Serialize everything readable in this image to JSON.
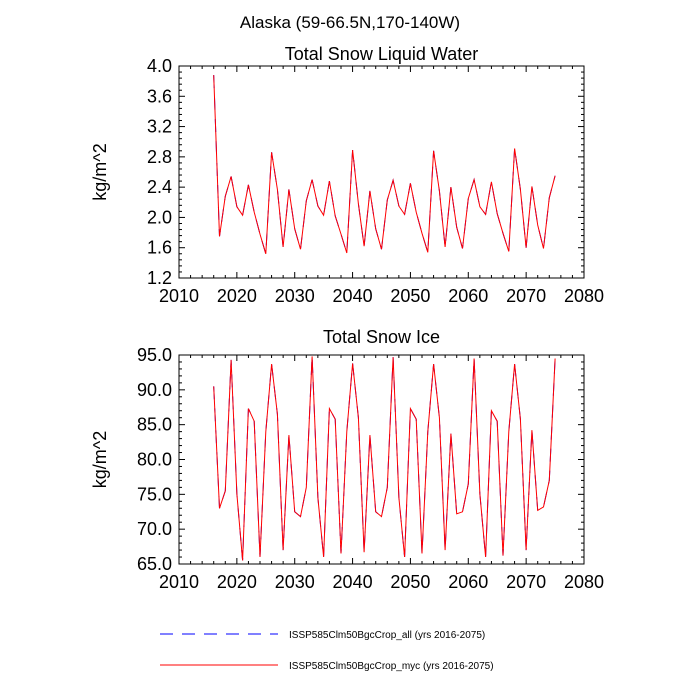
{
  "figure": {
    "title": "Alaska (59-66.5N,170-140W)"
  },
  "legend": {
    "placement": "bottom",
    "entries": [
      {
        "label": "ISSP585Clm50BgcCrop_all (yrs 2016-2075)",
        "color": "#0000ff",
        "style": "dashed"
      },
      {
        "label": "ISSP585Clm50BgcCrop_myc (yrs 2016-2075)",
        "color": "#ff0000",
        "style": "solid"
      }
    ]
  },
  "chart_data": [
    {
      "type": "line",
      "title": "Total Snow Liquid Water",
      "xlabel": "",
      "ylabel": "kg/m^2",
      "xlim": [
        2010,
        2080
      ],
      "ylim": [
        1.2,
        4.0
      ],
      "xticks": [
        2010,
        2020,
        2030,
        2040,
        2050,
        2060,
        2070,
        2080
      ],
      "xtick_labels": [
        "2010",
        "2020",
        "2030",
        "2040",
        "2050",
        "2060",
        "2070",
        "2080"
      ],
      "yticks": [
        1.2,
        1.6,
        2.0,
        2.4,
        2.8,
        3.2,
        3.6,
        4.0
      ],
      "ytick_labels": [
        "1.2",
        "1.6",
        "2.0",
        "2.4",
        "2.8",
        "3.2",
        "3.6",
        "4.0"
      ],
      "grid": false,
      "x": [
        2016,
        2017,
        2018,
        2019,
        2020,
        2021,
        2022,
        2023,
        2024,
        2025,
        2026,
        2027,
        2028,
        2029,
        2030,
        2031,
        2032,
        2033,
        2034,
        2035,
        2036,
        2037,
        2038,
        2039,
        2040,
        2041,
        2042,
        2043,
        2044,
        2045,
        2046,
        2047,
        2048,
        2049,
        2050,
        2051,
        2052,
        2053,
        2054,
        2055,
        2056,
        2057,
        2058,
        2059,
        2060,
        2061,
        2062,
        2063,
        2064,
        2065,
        2066,
        2067,
        2068,
        2069,
        2070,
        2071,
        2072,
        2073,
        2074,
        2075
      ],
      "series": [
        {
          "color": "#0000ff",
          "style": "dashed",
          "values": [
            3.88,
            1.75,
            2.28,
            2.54,
            2.14,
            2.03,
            2.43,
            2.07,
            1.78,
            1.52,
            2.86,
            2.37,
            1.61,
            2.37,
            1.85,
            1.58,
            2.22,
            2.5,
            2.15,
            2.03,
            2.48,
            2.02,
            1.78,
            1.53,
            2.89,
            2.18,
            1.62,
            2.35,
            1.85,
            1.58,
            2.23,
            2.49,
            2.15,
            2.04,
            2.45,
            2.07,
            1.79,
            1.54,
            2.88,
            2.35,
            1.61,
            2.4,
            1.87,
            1.59,
            2.25,
            2.5,
            2.14,
            2.04,
            2.47,
            2.05,
            1.79,
            1.55,
            2.91,
            2.37,
            1.6,
            2.41,
            1.9,
            1.59,
            2.26,
            2.55
          ]
        },
        {
          "color": "#ff0000",
          "style": "solid",
          "values": [
            3.88,
            1.75,
            2.28,
            2.54,
            2.14,
            2.03,
            2.43,
            2.07,
            1.78,
            1.52,
            2.86,
            2.37,
            1.61,
            2.37,
            1.85,
            1.58,
            2.22,
            2.5,
            2.15,
            2.03,
            2.48,
            2.02,
            1.78,
            1.53,
            2.89,
            2.18,
            1.62,
            2.35,
            1.85,
            1.58,
            2.23,
            2.49,
            2.15,
            2.04,
            2.45,
            2.07,
            1.79,
            1.54,
            2.88,
            2.35,
            1.61,
            2.4,
            1.87,
            1.59,
            2.25,
            2.5,
            2.14,
            2.04,
            2.47,
            2.05,
            1.79,
            1.55,
            2.91,
            2.37,
            1.6,
            2.41,
            1.9,
            1.59,
            2.26,
            2.55
          ]
        }
      ]
    },
    {
      "type": "line",
      "title": "Total Snow Ice",
      "xlabel": "",
      "ylabel": "kg/m^2",
      "xlim": [
        2010,
        2080
      ],
      "ylim": [
        65.0,
        95.0
      ],
      "xticks": [
        2010,
        2020,
        2030,
        2040,
        2050,
        2060,
        2070,
        2080
      ],
      "xtick_labels": [
        "2010",
        "2020",
        "2030",
        "2040",
        "2050",
        "2060",
        "2070",
        "2080"
      ],
      "yticks": [
        65,
        70,
        75,
        80,
        85,
        90,
        95
      ],
      "ytick_labels": [
        "65.0",
        "70.0",
        "75.0",
        "80.0",
        "85.0",
        "90.0",
        "95.0"
      ],
      "grid": false,
      "x": [
        2016,
        2017,
        2018,
        2019,
        2020,
        2021,
        2022,
        2023,
        2024,
        2025,
        2026,
        2027,
        2028,
        2029,
        2030,
        2031,
        2032,
        2033,
        2034,
        2035,
        2036,
        2037,
        2038,
        2039,
        2040,
        2041,
        2042,
        2043,
        2044,
        2045,
        2046,
        2047,
        2048,
        2049,
        2050,
        2051,
        2052,
        2053,
        2054,
        2055,
        2056,
        2057,
        2058,
        2059,
        2060,
        2061,
        2062,
        2063,
        2064,
        2065,
        2066,
        2067,
        2068,
        2069,
        2070,
        2071,
        2072,
        2073,
        2074,
        2075
      ],
      "series": [
        {
          "color": "#0000ff",
          "style": "dashed",
          "values": [
            90.5,
            73.0,
            75.5,
            94.3,
            75.0,
            65.5,
            87.3,
            85.5,
            66.0,
            84.0,
            93.7,
            86.5,
            67.0,
            83.5,
            72.5,
            71.8,
            76.0,
            94.8,
            74.5,
            66.0,
            87.3,
            85.8,
            66.5,
            84.0,
            93.8,
            86.0,
            66.7,
            83.5,
            72.5,
            71.8,
            76.0,
            94.7,
            74.5,
            66.0,
            87.3,
            85.8,
            66.5,
            84.0,
            93.7,
            86.0,
            67.0,
            83.7,
            72.2,
            72.5,
            76.5,
            94.5,
            75.0,
            66.0,
            87.0,
            85.5,
            66.2,
            84.0,
            93.7,
            85.8,
            67.0,
            84.2,
            72.7,
            73.2,
            77.0,
            94.5
          ]
        },
        {
          "color": "#ff0000",
          "style": "solid",
          "values": [
            90.5,
            73.0,
            75.5,
            94.3,
            75.0,
            65.5,
            87.3,
            85.5,
            66.0,
            84.0,
            93.7,
            86.5,
            67.0,
            83.5,
            72.5,
            71.8,
            76.0,
            94.8,
            74.5,
            66.0,
            87.3,
            85.8,
            66.5,
            84.0,
            93.8,
            86.0,
            66.7,
            83.5,
            72.5,
            71.8,
            76.0,
            94.7,
            74.5,
            66.0,
            87.3,
            85.8,
            66.5,
            84.0,
            93.7,
            86.0,
            67.0,
            83.7,
            72.2,
            72.5,
            76.5,
            94.5,
            75.0,
            66.0,
            87.0,
            85.5,
            66.2,
            84.0,
            93.7,
            85.8,
            67.0,
            84.2,
            72.7,
            73.2,
            77.0,
            94.5
          ]
        }
      ]
    }
  ]
}
